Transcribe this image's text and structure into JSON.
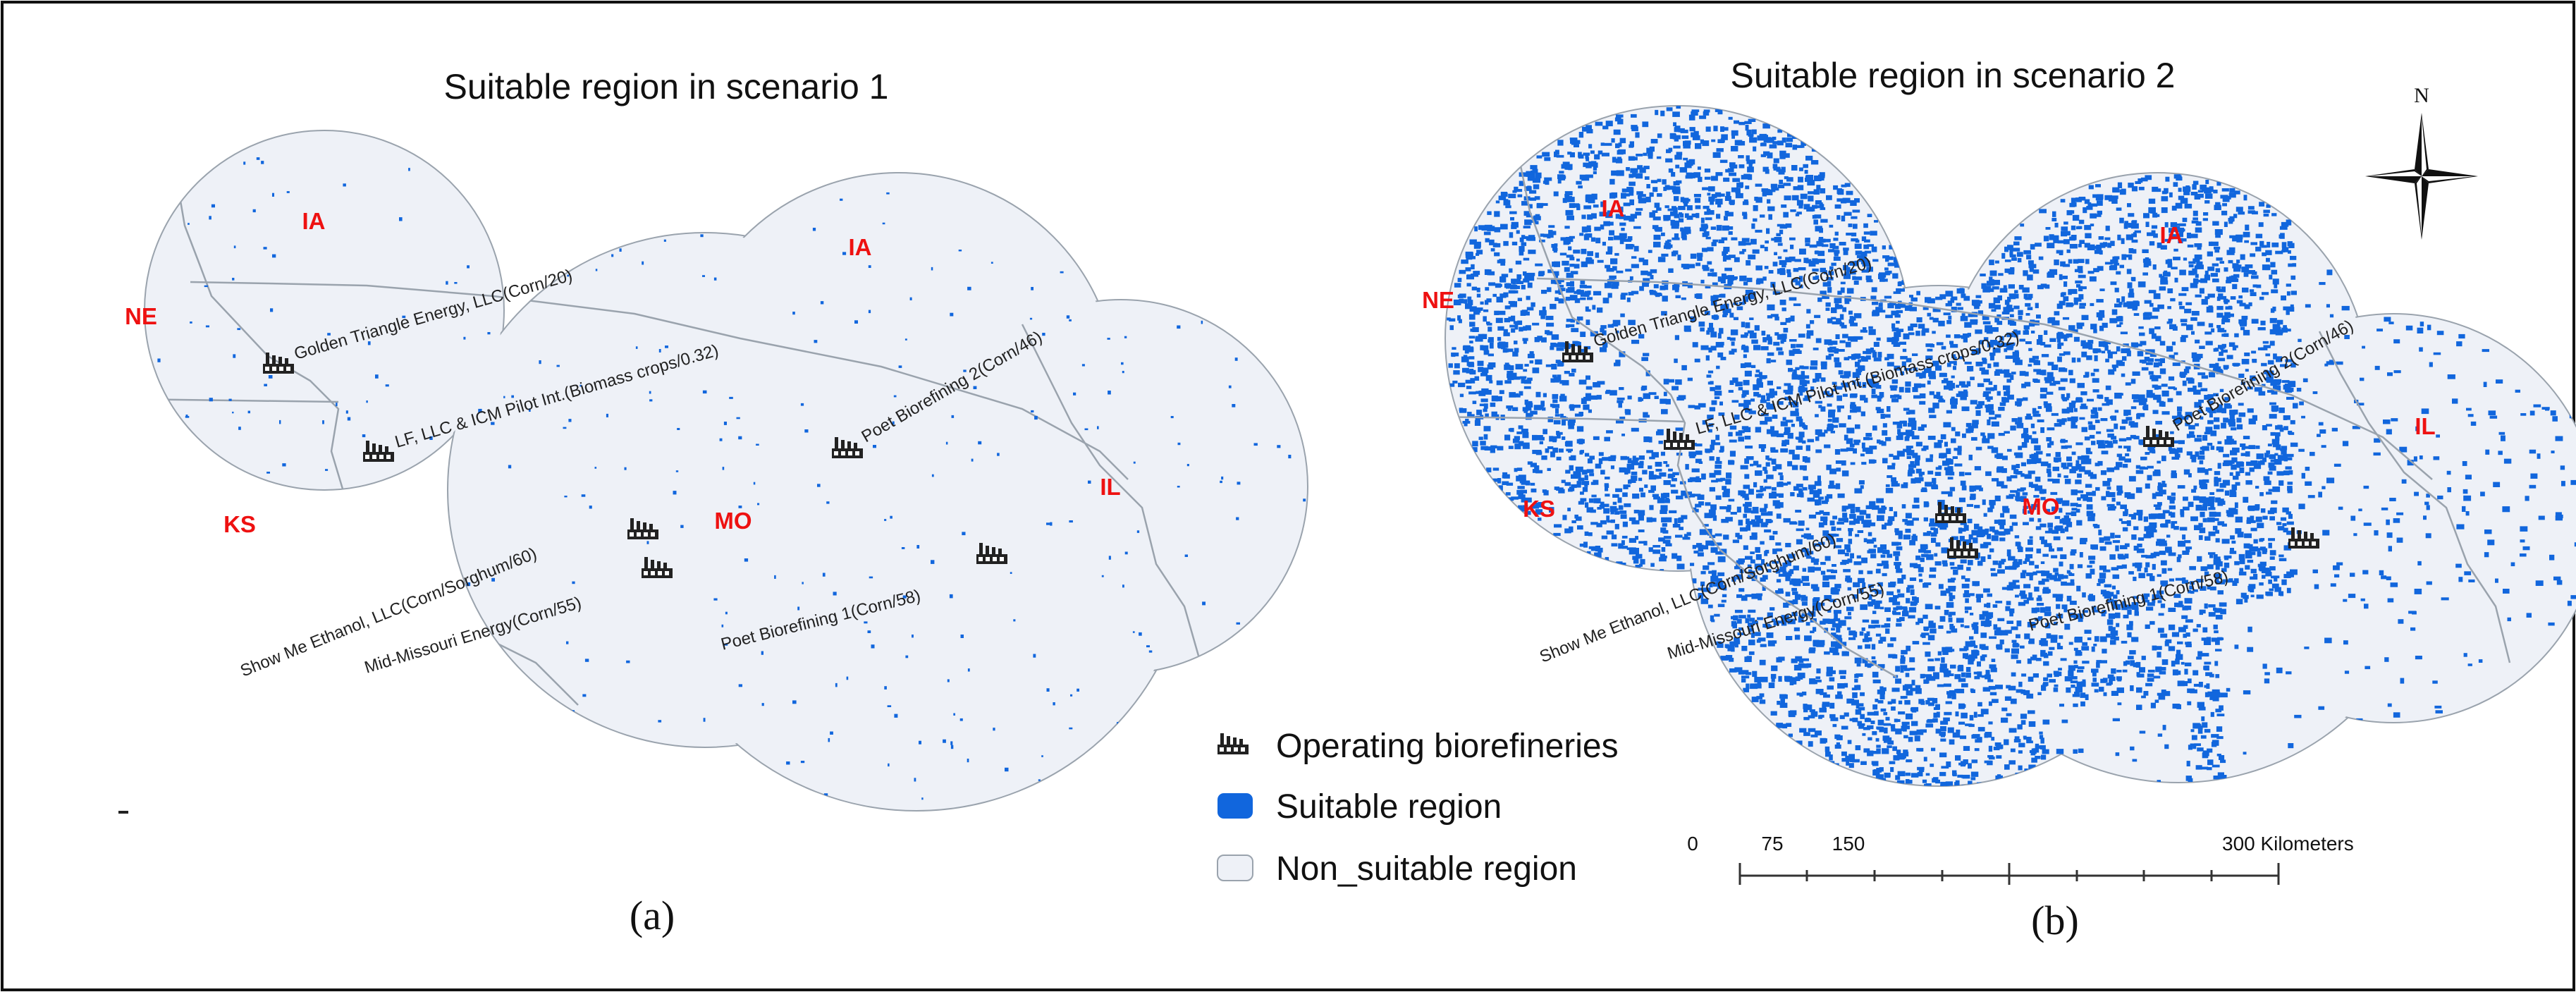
{
  "panels": [
    {
      "title": "Suitable region in scenario 1",
      "caption": "(a)",
      "states": [
        "IA",
        "NE",
        "IA",
        "KS",
        "MO",
        "IL"
      ],
      "facilities": [
        "Golden Triangle Energy, LLC(Corn/20)",
        "LF, LLC & ICM Pilot Int.(Biomass crops/0.32)",
        "Poet Biorefining 2(Corn/46)",
        "Show Me Ethanol, LLC(Corn/Sorghum/60)",
        "Mid-Missouri Energy(Corn/55)",
        "Poet Biorefining 1(Corn/58)"
      ]
    },
    {
      "title": "Suitable region in scenario 2",
      "caption": "(b)",
      "states": [
        "IA",
        "NE",
        "IA",
        "KS",
        "MO",
        "IL"
      ],
      "facilities": [
        "Golden Triangle Energy, LLC(Corn/20)",
        "LF, LLC & ICM Pilot Int.(Biomass crops/0.32)",
        "Poet Biorefining 2(Corn/46)",
        "Show Me Ethanol, LLC(Corn/Sorghum/60)",
        "Mid-Missouri Energy(Corn/55)",
        "Poet Biorefining 1(Corn/58)"
      ]
    }
  ],
  "legend": {
    "items": [
      {
        "label": "Operating biorefineries",
        "symbol": "factory-icon"
      },
      {
        "label": "Suitable region",
        "color": "#1166dd"
      },
      {
        "label": "Non_suitable region",
        "color": "#eef1f7"
      }
    ]
  },
  "scalebar": {
    "ticks": [
      "0",
      "75",
      "150",
      "300 Kilometers"
    ]
  },
  "north_arrow": {
    "label": "N"
  },
  "colors": {
    "suitable": "#1166dd",
    "non_suitable": "#eef1f7",
    "state_label": "#ee1111",
    "boundary": "#9aa3ad"
  }
}
